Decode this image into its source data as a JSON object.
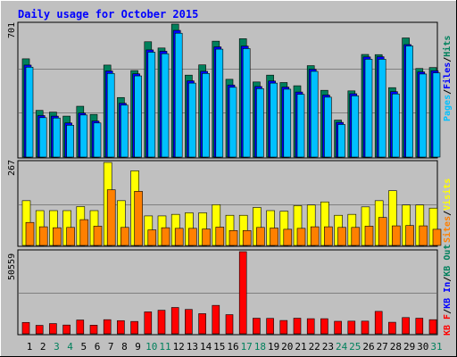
{
  "chart_data": [
    {
      "type": "bar",
      "panel": "hits-files-pages",
      "title": "Daily usage for October 2015",
      "x": [
        1,
        2,
        3,
        4,
        5,
        6,
        7,
        8,
        9,
        10,
        11,
        12,
        13,
        14,
        15,
        16,
        17,
        18,
        19,
        20,
        21,
        22,
        23,
        24,
        25,
        26,
        27,
        28,
        29,
        30,
        31
      ],
      "weekend_days": [
        3,
        4,
        10,
        11,
        17,
        18,
        24,
        25,
        31
      ],
      "ymax_label": "701",
      "ylim": [
        0,
        701
      ],
      "right_label_parts": [
        "Pages",
        "/",
        "Files",
        "/",
        "Hits"
      ],
      "series": [
        {
          "name": "Hits",
          "color": "#00805c",
          "values": [
            518,
            246,
            237,
            216,
            268,
            225,
            485,
            314,
            456,
            608,
            575,
            701,
            432,
            486,
            611,
            410,
            624,
            396,
            432,
            393,
            376,
            482,
            352,
            195,
            349,
            541,
            540,
            366,
            628,
            467,
            472
          ]
        },
        {
          "name": "Files",
          "color": "#0000ff",
          "values": [
            492,
            226,
            223,
            187,
            239,
            197,
            461,
            291,
            446,
            572,
            565,
            675,
            409,
            459,
            588,
            387,
            592,
            379,
            408,
            376,
            350,
            470,
            334,
            190,
            341,
            535,
            536,
            352,
            600,
            456,
            462
          ]
        },
        {
          "name": "Pages",
          "color": "#00c0ff",
          "values": [
            488,
            222,
            220,
            182,
            236,
            194,
            455,
            288,
            442,
            567,
            559,
            667,
            404,
            455,
            583,
            382,
            586,
            375,
            404,
            372,
            345,
            466,
            330,
            186,
            337,
            530,
            530,
            347,
            600,
            452,
            458
          ]
        }
      ]
    },
    {
      "type": "bar",
      "panel": "visits-sites",
      "ymax_label": "267",
      "ylim": [
        0,
        267
      ],
      "right_label_parts": [
        "Sites",
        "/",
        "Visits"
      ],
      "series": [
        {
          "name": "Visits",
          "color": "#ffff00",
          "values": [
            144,
            112,
            112,
            112,
            125,
            112,
            267,
            144,
            240,
            95,
            95,
            100,
            105,
            105,
            131,
            97,
            97,
            122,
            112,
            110,
            128,
            130,
            140,
            97,
            100,
            124,
            144,
            176,
            130,
            130,
            120
          ]
        },
        {
          "name": "Sites",
          "color": "#ff8000",
          "values": [
            74,
            60,
            57,
            58,
            83,
            62,
            179,
            58,
            174,
            50,
            57,
            55,
            55,
            53,
            59,
            48,
            48,
            58,
            56,
            52,
            55,
            60,
            60,
            58,
            58,
            62,
            90,
            63,
            64,
            63,
            52
          ]
        }
      ]
    },
    {
      "type": "bar",
      "panel": "kbytes",
      "ymax_label": "50559",
      "ylim": [
        0,
        50559
      ],
      "right_label_parts": [
        "KB F",
        "/",
        "KB In",
        "/",
        "KB Out"
      ],
      "series": [
        {
          "name": "KB F",
          "color": "#ff0000",
          "values": [
            7000,
            5200,
            6300,
            5400,
            8500,
            5300,
            8700,
            8100,
            7600,
            13500,
            14500,
            16200,
            15000,
            12400,
            17500,
            11800,
            50559,
            9600,
            9500,
            8200,
            9600,
            9300,
            9300,
            7700,
            7800,
            7800,
            13800,
            7100,
            10000,
            9600,
            8700
          ]
        }
      ]
    }
  ],
  "colors": {
    "background": "#c0c0c0",
    "plot_bg": "#c0c0c0",
    "title": "#0000ff",
    "weekday_label": "#000000",
    "weekend_label": "#00805c",
    "hits": "#00805c",
    "files": "#0000ff",
    "pages": "#00c0ff",
    "visits": "#ffff00",
    "sites": "#ff8000",
    "kbytes": "#ff0000"
  }
}
